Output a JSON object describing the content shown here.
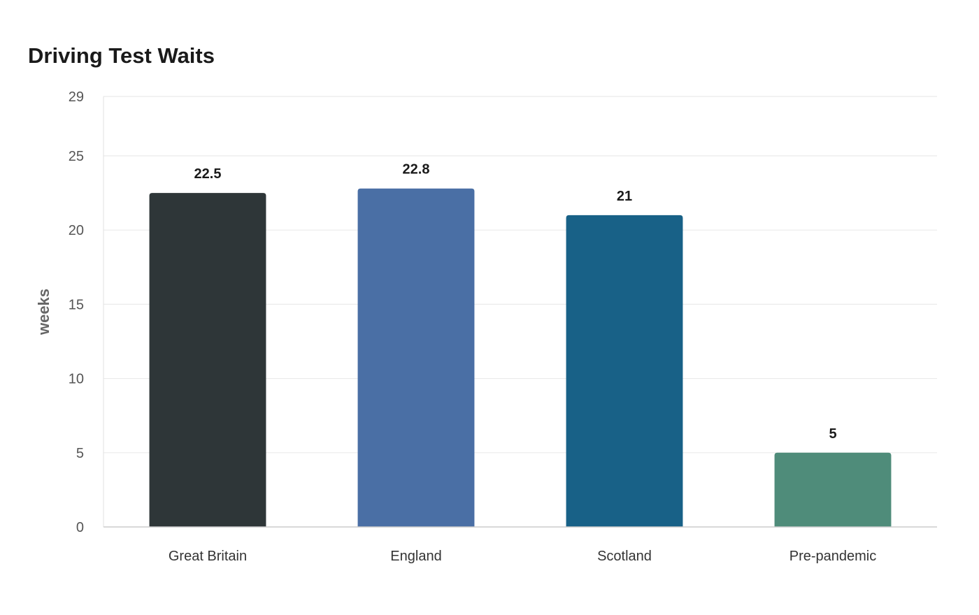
{
  "chart_data": {
    "type": "bar",
    "title": "Driving Test Waits",
    "xlabel": "",
    "ylabel": "weeks",
    "categories": [
      "Great Britain",
      "England",
      "Scotland",
      "Pre-pandemic"
    ],
    "values": [
      22.5,
      22.8,
      21,
      5
    ],
    "data_labels": [
      "22.5",
      "22.8",
      "21",
      "5"
    ],
    "colors": [
      "#2e3638",
      "#4a6fa5",
      "#186187",
      "#4f8c7a"
    ],
    "ylim": [
      0,
      29
    ],
    "yticks": [
      0,
      5,
      10,
      15,
      20,
      25,
      29
    ],
    "grid": true,
    "legend": "none"
  }
}
